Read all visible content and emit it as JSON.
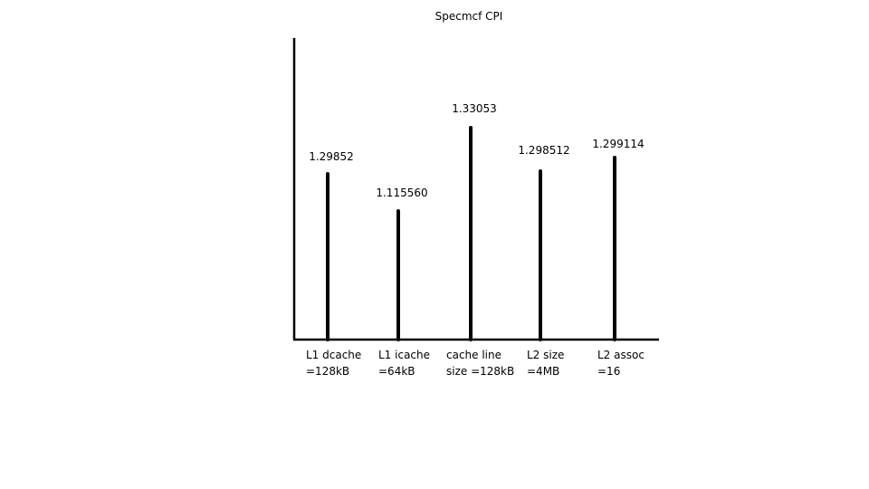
{
  "chart_data": {
    "type": "bar",
    "title": "Specmcf CPI",
    "xlabel": "",
    "ylabel": "",
    "categories": [
      [
        "L1 dcache",
        "=128kB"
      ],
      [
        "L1 icache",
        "=64kB"
      ],
      [
        "cache line",
        "size =128kB"
      ],
      [
        "L2 size",
        "=4MB"
      ],
      [
        "L2 assoc",
        "=16"
      ]
    ],
    "values": [
      1.29852,
      1.11556,
      1.33053,
      1.298512,
      1.299114
    ],
    "value_labels": [
      "1.29852",
      "1.115560",
      "1.33053",
      "1.298512",
      "1.299114"
    ],
    "grid": false,
    "legend": "none",
    "bar_color": "#000000"
  }
}
